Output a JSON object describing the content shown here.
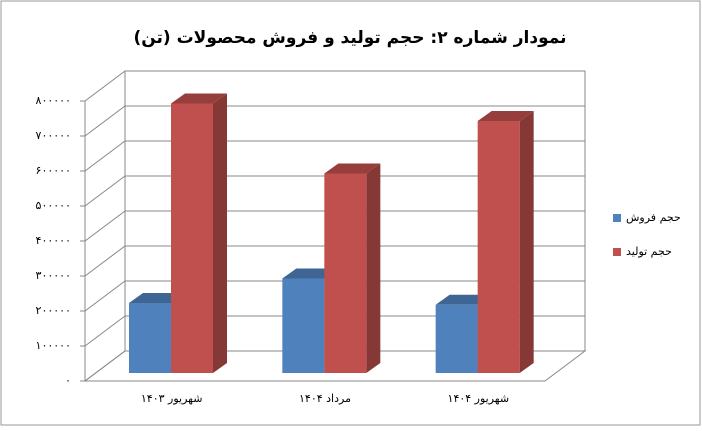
{
  "chart_data": {
    "type": "bar3d",
    "title": "نمودار شماره ۲: حجم تولید و فروش محصولات (تن)",
    "categories": [
      "شهریور ۱۴۰۳",
      "مرداد ۱۴۰۴",
      "شهریور ۱۴۰۴"
    ],
    "series": [
      {
        "name": "حجم فروش",
        "color": "#4f81bd",
        "values": [
          200000,
          270000,
          195000
        ]
      },
      {
        "name": "حجم تولید",
        "color": "#c0504d",
        "values": [
          770000,
          570000,
          720000
        ]
      }
    ],
    "ylim": [
      0,
      800000
    ],
    "yticks": [
      {
        "value": 0,
        "label": "۰"
      },
      {
        "value": 100000,
        "label": "۱۰۰۰۰۰"
      },
      {
        "value": 200000,
        "label": "۲۰۰۰۰۰"
      },
      {
        "value": 300000,
        "label": "۳۰۰۰۰۰"
      },
      {
        "value": 400000,
        "label": "۴۰۰۰۰۰"
      },
      {
        "value": 500000,
        "label": "۵۰۰۰۰۰"
      },
      {
        "value": 600000,
        "label": "۶۰۰۰۰۰"
      },
      {
        "value": 700000,
        "label": "۷۰۰۰۰۰"
      },
      {
        "value": 800000,
        "label": "۸۰۰۰۰۰"
      }
    ],
    "grid": true,
    "legend": "right"
  }
}
